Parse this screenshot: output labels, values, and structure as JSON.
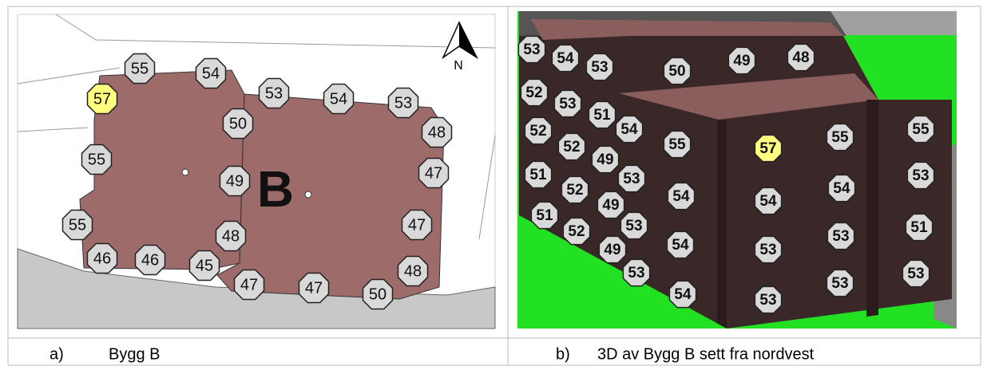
{
  "panel_a": {
    "caption_letter": "a)",
    "caption": "Bygg B",
    "north_label": "N",
    "building_label": "B",
    "label_color": "#d9d9d9",
    "labels": [
      {
        "value": 57,
        "color": "#ffff80"
      },
      55,
      54,
      53,
      54,
      53,
      50,
      48,
      55,
      47,
      49,
      55,
      47,
      48,
      46,
      46,
      45,
      48,
      47,
      47,
      50
    ]
  },
  "panel_b": {
    "caption_letter": "b)",
    "caption": "3D av Bygg B sett fra nordvest",
    "label_color": "#d9d9d9",
    "labels": [
      53,
      54,
      53,
      50,
      49,
      48,
      52,
      53,
      51,
      54,
      52,
      52,
      49,
      55,
      {
        "value": 57,
        "color": "#ffff80"
      },
      55,
      55,
      51,
      53,
      52,
      54,
      49,
      54,
      54,
      53,
      51,
      53,
      52,
      54,
      49,
      53,
      53,
      51,
      53,
      53,
      53,
      54,
      53
    ]
  }
}
